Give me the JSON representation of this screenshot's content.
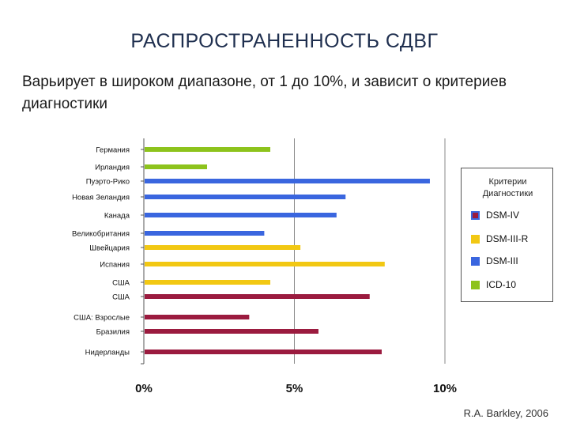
{
  "slide": {
    "title": "РАСПРОСТРАНЕННОСТЬ СДВГ",
    "subtitle": "Варьирует в широком диапазоне, от 1 до 10%, и зависит о критериев диагностики",
    "source": "R.A. Barkley, 2006"
  },
  "chart_data": {
    "type": "bar",
    "orientation": "horizontal",
    "xlim": [
      0,
      10
    ],
    "xticks": [
      {
        "value": 0,
        "label": "0%"
      },
      {
        "value": 5,
        "label": "5%"
      },
      {
        "value": 10,
        "label": "10%"
      }
    ],
    "grid": "vertical lines at 5% and 10%",
    "categories": [
      "Германия",
      "Ирландия",
      "Пуэрто-Рико",
      "Новая Зеландия",
      "Канада",
      "Великобритания",
      "Швейцария",
      "Испания",
      "США",
      "США",
      "США: Взрослые",
      "Бразилия",
      "Нидерланды"
    ],
    "values": [
      4.2,
      2.1,
      9.5,
      6.7,
      6.4,
      4.0,
      5.2,
      8.0,
      4.2,
      7.5,
      3.5,
      5.8,
      7.9
    ],
    "criteria": [
      "ICD-10",
      "ICD-10",
      "DSM-III",
      "DSM-III",
      "DSM-III",
      "DSM-III",
      "DSM-III-R",
      "DSM-III-R",
      "DSM-III-R",
      "DSM-IV",
      "DSM-IV",
      "DSM-IV",
      "DSM-IV"
    ],
    "colors": {
      "DSM-IV": "#9b1b3f",
      "DSM-III-R": "#f2c813",
      "DSM-III": "#3a66df",
      "ICD-10": "#8dc31c"
    },
    "legend": {
      "title_line1": "Критерии",
      "title_line2": "Диагностики",
      "position": "right",
      "items": [
        {
          "label": "DSM-IV",
          "color": "#9b1b3f"
        },
        {
          "label": "DSM-III-R",
          "color": "#f2c813"
        },
        {
          "label": "DSM-III",
          "color": "#3a66df"
        },
        {
          "label": "ICD-10",
          "color": "#8dc31c"
        }
      ]
    }
  }
}
